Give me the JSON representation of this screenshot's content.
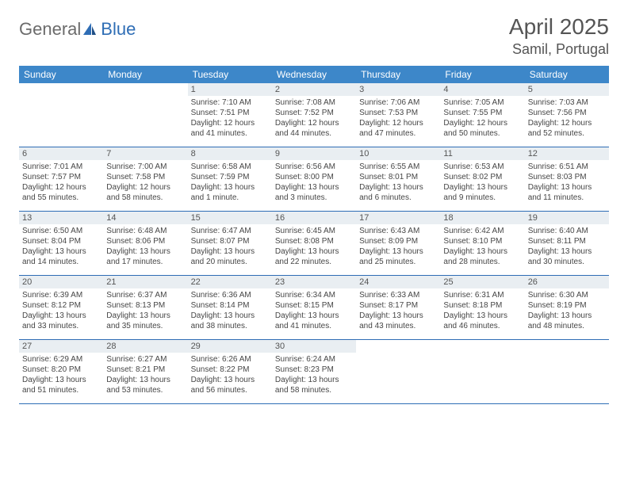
{
  "brand": {
    "part1": "General",
    "part2": "Blue"
  },
  "title": {
    "month": "April 2025",
    "location": "Samil, Portugal"
  },
  "colors": {
    "header_bg": "#3d87c9",
    "week_border": "#2e6db5",
    "daynum_bg": "#e9eef2",
    "text": "#464646",
    "logo_gray": "#6b6b6b",
    "logo_blue": "#2e6db5",
    "bg": "#ffffff"
  },
  "fonts": {
    "month_size": 28,
    "location_size": 18,
    "header_size": 12,
    "day_size": 11,
    "info_size": 10
  },
  "day_headers": [
    "Sunday",
    "Monday",
    "Tuesday",
    "Wednesday",
    "Thursday",
    "Friday",
    "Saturday"
  ],
  "weeks": [
    [
      null,
      null,
      {
        "n": "1",
        "sr": "Sunrise: 7:10 AM",
        "ss": "Sunset: 7:51 PM",
        "d1": "Daylight: 12 hours",
        "d2": "and 41 minutes."
      },
      {
        "n": "2",
        "sr": "Sunrise: 7:08 AM",
        "ss": "Sunset: 7:52 PM",
        "d1": "Daylight: 12 hours",
        "d2": "and 44 minutes."
      },
      {
        "n": "3",
        "sr": "Sunrise: 7:06 AM",
        "ss": "Sunset: 7:53 PM",
        "d1": "Daylight: 12 hours",
        "d2": "and 47 minutes."
      },
      {
        "n": "4",
        "sr": "Sunrise: 7:05 AM",
        "ss": "Sunset: 7:55 PM",
        "d1": "Daylight: 12 hours",
        "d2": "and 50 minutes."
      },
      {
        "n": "5",
        "sr": "Sunrise: 7:03 AM",
        "ss": "Sunset: 7:56 PM",
        "d1": "Daylight: 12 hours",
        "d2": "and 52 minutes."
      }
    ],
    [
      {
        "n": "6",
        "sr": "Sunrise: 7:01 AM",
        "ss": "Sunset: 7:57 PM",
        "d1": "Daylight: 12 hours",
        "d2": "and 55 minutes."
      },
      {
        "n": "7",
        "sr": "Sunrise: 7:00 AM",
        "ss": "Sunset: 7:58 PM",
        "d1": "Daylight: 12 hours",
        "d2": "and 58 minutes."
      },
      {
        "n": "8",
        "sr": "Sunrise: 6:58 AM",
        "ss": "Sunset: 7:59 PM",
        "d1": "Daylight: 13 hours",
        "d2": "and 1 minute."
      },
      {
        "n": "9",
        "sr": "Sunrise: 6:56 AM",
        "ss": "Sunset: 8:00 PM",
        "d1": "Daylight: 13 hours",
        "d2": "and 3 minutes."
      },
      {
        "n": "10",
        "sr": "Sunrise: 6:55 AM",
        "ss": "Sunset: 8:01 PM",
        "d1": "Daylight: 13 hours",
        "d2": "and 6 minutes."
      },
      {
        "n": "11",
        "sr": "Sunrise: 6:53 AM",
        "ss": "Sunset: 8:02 PM",
        "d1": "Daylight: 13 hours",
        "d2": "and 9 minutes."
      },
      {
        "n": "12",
        "sr": "Sunrise: 6:51 AM",
        "ss": "Sunset: 8:03 PM",
        "d1": "Daylight: 13 hours",
        "d2": "and 11 minutes."
      }
    ],
    [
      {
        "n": "13",
        "sr": "Sunrise: 6:50 AM",
        "ss": "Sunset: 8:04 PM",
        "d1": "Daylight: 13 hours",
        "d2": "and 14 minutes."
      },
      {
        "n": "14",
        "sr": "Sunrise: 6:48 AM",
        "ss": "Sunset: 8:06 PM",
        "d1": "Daylight: 13 hours",
        "d2": "and 17 minutes."
      },
      {
        "n": "15",
        "sr": "Sunrise: 6:47 AM",
        "ss": "Sunset: 8:07 PM",
        "d1": "Daylight: 13 hours",
        "d2": "and 20 minutes."
      },
      {
        "n": "16",
        "sr": "Sunrise: 6:45 AM",
        "ss": "Sunset: 8:08 PM",
        "d1": "Daylight: 13 hours",
        "d2": "and 22 minutes."
      },
      {
        "n": "17",
        "sr": "Sunrise: 6:43 AM",
        "ss": "Sunset: 8:09 PM",
        "d1": "Daylight: 13 hours",
        "d2": "and 25 minutes."
      },
      {
        "n": "18",
        "sr": "Sunrise: 6:42 AM",
        "ss": "Sunset: 8:10 PM",
        "d1": "Daylight: 13 hours",
        "d2": "and 28 minutes."
      },
      {
        "n": "19",
        "sr": "Sunrise: 6:40 AM",
        "ss": "Sunset: 8:11 PM",
        "d1": "Daylight: 13 hours",
        "d2": "and 30 minutes."
      }
    ],
    [
      {
        "n": "20",
        "sr": "Sunrise: 6:39 AM",
        "ss": "Sunset: 8:12 PM",
        "d1": "Daylight: 13 hours",
        "d2": "and 33 minutes."
      },
      {
        "n": "21",
        "sr": "Sunrise: 6:37 AM",
        "ss": "Sunset: 8:13 PM",
        "d1": "Daylight: 13 hours",
        "d2": "and 35 minutes."
      },
      {
        "n": "22",
        "sr": "Sunrise: 6:36 AM",
        "ss": "Sunset: 8:14 PM",
        "d1": "Daylight: 13 hours",
        "d2": "and 38 minutes."
      },
      {
        "n": "23",
        "sr": "Sunrise: 6:34 AM",
        "ss": "Sunset: 8:15 PM",
        "d1": "Daylight: 13 hours",
        "d2": "and 41 minutes."
      },
      {
        "n": "24",
        "sr": "Sunrise: 6:33 AM",
        "ss": "Sunset: 8:17 PM",
        "d1": "Daylight: 13 hours",
        "d2": "and 43 minutes."
      },
      {
        "n": "25",
        "sr": "Sunrise: 6:31 AM",
        "ss": "Sunset: 8:18 PM",
        "d1": "Daylight: 13 hours",
        "d2": "and 46 minutes."
      },
      {
        "n": "26",
        "sr": "Sunrise: 6:30 AM",
        "ss": "Sunset: 8:19 PM",
        "d1": "Daylight: 13 hours",
        "d2": "and 48 minutes."
      }
    ],
    [
      {
        "n": "27",
        "sr": "Sunrise: 6:29 AM",
        "ss": "Sunset: 8:20 PM",
        "d1": "Daylight: 13 hours",
        "d2": "and 51 minutes."
      },
      {
        "n": "28",
        "sr": "Sunrise: 6:27 AM",
        "ss": "Sunset: 8:21 PM",
        "d1": "Daylight: 13 hours",
        "d2": "and 53 minutes."
      },
      {
        "n": "29",
        "sr": "Sunrise: 6:26 AM",
        "ss": "Sunset: 8:22 PM",
        "d1": "Daylight: 13 hours",
        "d2": "and 56 minutes."
      },
      {
        "n": "30",
        "sr": "Sunrise: 6:24 AM",
        "ss": "Sunset: 8:23 PM",
        "d1": "Daylight: 13 hours",
        "d2": "and 58 minutes."
      },
      null,
      null,
      null
    ]
  ]
}
